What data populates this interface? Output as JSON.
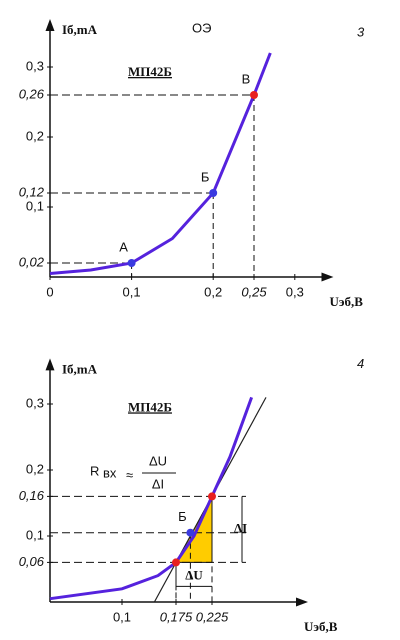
{
  "chart_data": [
    {
      "type": "line",
      "title": "ОЭ",
      "figure_number": "3",
      "device": "МП42Б",
      "y_label": "Iб,mA",
      "x_label": "Uэб,В",
      "xlim": [
        0,
        0.34
      ],
      "ylim": [
        0,
        0.36
      ],
      "xticks": [
        0,
        {
          "value": 0.1,
          "label": "0,1"
        },
        {
          "value": 0.2,
          "label": "0,2"
        },
        {
          "value": 0.25,
          "label": "0,25",
          "style": "italic"
        },
        {
          "value": 0.3,
          "label": "0,3"
        }
      ],
      "yticks": [
        {
          "value": 0.02,
          "label": "0,02",
          "style": "italic"
        },
        {
          "value": 0.1,
          "label": "0,1"
        },
        {
          "value": 0.12,
          "label": "0,12",
          "style": "italic"
        },
        {
          "value": 0.2,
          "label": "0,2"
        },
        {
          "value": 0.26,
          "label": "0,26",
          "style": "italic"
        },
        {
          "value": 0.3,
          "label": "0,3"
        }
      ],
      "curve": {
        "color": "#5522dd",
        "x": [
          0,
          0.05,
          0.1,
          0.15,
          0.2,
          0.25,
          0.27
        ],
        "values": [
          0.005,
          0.01,
          0.02,
          0.055,
          0.12,
          0.26,
          0.32
        ]
      },
      "points": [
        {
          "label": "А",
          "x": 0.1,
          "y": 0.02,
          "color": "#3a3ae0"
        },
        {
          "label": "Б",
          "x": 0.2,
          "y": 0.12,
          "color": "#3a3ae0"
        },
        {
          "label": "В",
          "x": 0.25,
          "y": 0.26,
          "color": "#e82020"
        }
      ]
    },
    {
      "type": "line",
      "figure_number": "4",
      "device": "МП42Б",
      "y_label": "Iб,mA",
      "x_label": "Uэб,В",
      "xlim": [
        0,
        0.35
      ],
      "ylim": [
        0,
        0.36
      ],
      "xticks": [
        {
          "value": 0.1,
          "label": "0,1"
        },
        {
          "value": 0.175,
          "label": "0,175",
          "style": "italic"
        },
        {
          "value": 0.225,
          "label": "0,225",
          "style": "italic"
        }
      ],
      "yticks": [
        {
          "value": 0.06,
          "label": "0,06",
          "style": "italic"
        },
        {
          "value": 0.1,
          "label": "0,1"
        },
        {
          "value": 0.16,
          "label": "0,16",
          "style": "italic"
        },
        {
          "value": 0.2,
          "label": "0,2"
        },
        {
          "value": 0.3,
          "label": "0,3"
        }
      ],
      "curve": {
        "color": "#5522dd",
        "x": [
          0,
          0.1,
          0.15,
          0.175,
          0.2,
          0.225,
          0.25,
          0.27,
          0.28
        ],
        "values": [
          0.005,
          0.02,
          0.04,
          0.06,
          0.1,
          0.16,
          0.22,
          0.28,
          0.31
        ]
      },
      "tangent": {
        "color": "#222222",
        "x": [
          0.145,
          0.3
        ],
        "values": [
          0,
          0.31
        ]
      },
      "points": [
        {
          "label": "Б",
          "x": 0.195,
          "y": 0.105,
          "color": "#3a3ae0"
        }
      ],
      "marked_points": [
        {
          "x": 0.175,
          "y": 0.06,
          "color": "#e82020"
        },
        {
          "x": 0.225,
          "y": 0.16,
          "color": "#e82020"
        }
      ],
      "triangle_color": "#ffcc00",
      "formula": {
        "lhs": "R",
        "sub": "вх",
        "approx": "≈",
        "num": "ΔU",
        "den": "ΔI"
      },
      "du_label": "ΔU",
      "di_label": "ΔI"
    }
  ]
}
